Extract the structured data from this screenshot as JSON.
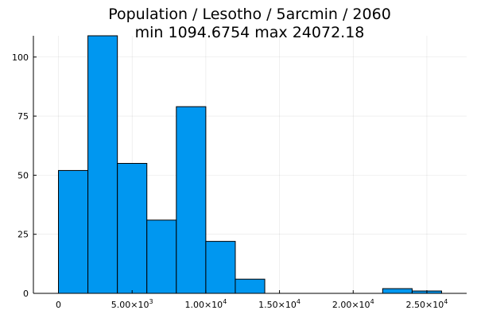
{
  "chart_data": {
    "type": "bar",
    "title_lines": [
      "Population / Lesotho / 5arcmin / 2060",
      "min 1094.6754  max 24072.18"
    ],
    "xlabel": "",
    "ylabel": "",
    "bins": [
      {
        "start": 0,
        "end": 2000,
        "count": 52
      },
      {
        "start": 2000,
        "end": 4000,
        "count": 109
      },
      {
        "start": 4000,
        "end": 6000,
        "count": 55
      },
      {
        "start": 6000,
        "end": 8000,
        "count": 31
      },
      {
        "start": 8000,
        "end": 10000,
        "count": 79
      },
      {
        "start": 10000,
        "end": 12000,
        "count": 22
      },
      {
        "start": 12000,
        "end": 14000,
        "count": 6
      },
      {
        "start": 14000,
        "end": 16000,
        "count": 0
      },
      {
        "start": 16000,
        "end": 18000,
        "count": 0
      },
      {
        "start": 18000,
        "end": 20000,
        "count": 0
      },
      {
        "start": 20000,
        "end": 22000,
        "count": 0
      },
      {
        "start": 22000,
        "end": 24000,
        "count": 2
      },
      {
        "start": 24000,
        "end": 26000,
        "count": 1
      }
    ],
    "xlim": [
      -1700,
      27700
    ],
    "ylim": [
      0,
      109
    ],
    "x_ticks": [
      {
        "value": 0,
        "mantissa": "0",
        "exponent": ""
      },
      {
        "value": 5000,
        "mantissa": "5.00×10",
        "exponent": "3"
      },
      {
        "value": 10000,
        "mantissa": "1.00×10",
        "exponent": "4"
      },
      {
        "value": 15000,
        "mantissa": "1.50×10",
        "exponent": "4"
      },
      {
        "value": 20000,
        "mantissa": "2.00×10",
        "exponent": "4"
      },
      {
        "value": 25000,
        "mantissa": "2.50×10",
        "exponent": "4"
      }
    ],
    "y_ticks": [
      0,
      25,
      50,
      75,
      100
    ],
    "bar_color": "#0097f0",
    "grid": true,
    "legend": "none"
  }
}
